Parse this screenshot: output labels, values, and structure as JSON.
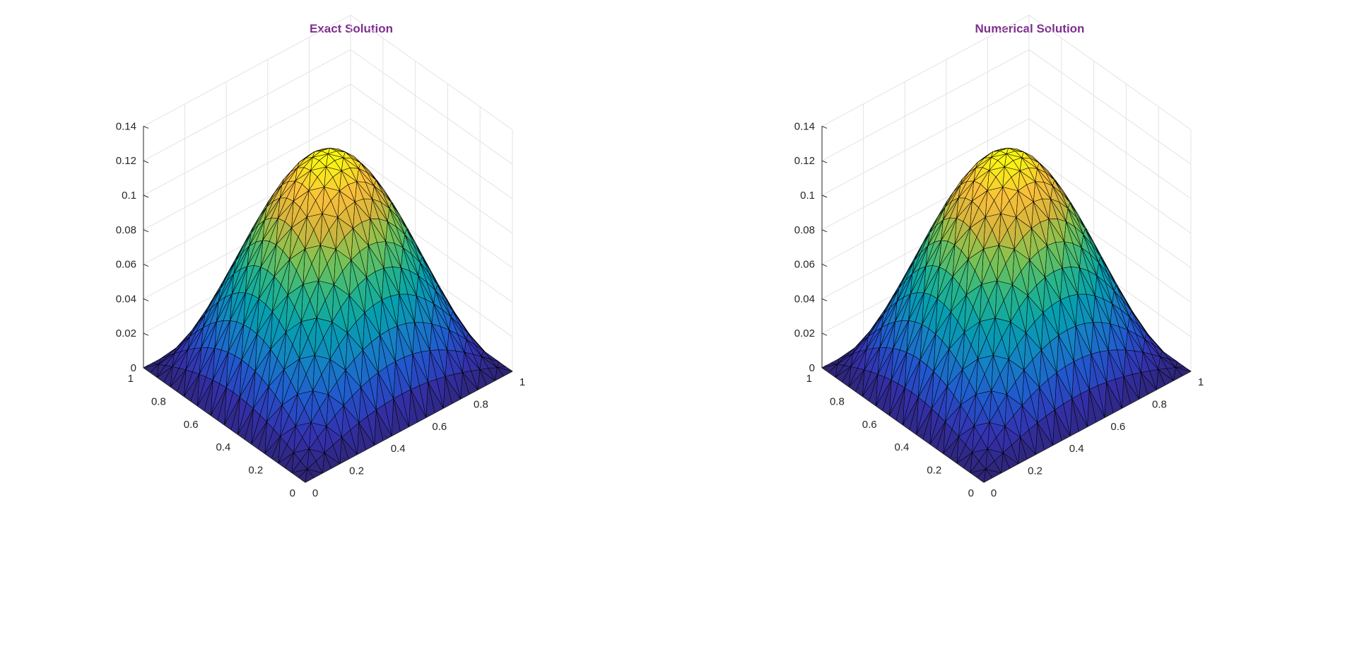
{
  "colors": {
    "title": "#7e2f8e",
    "grid": "#e3e3e3",
    "axis": "#262626",
    "mesh_edge": "#000000",
    "colormap": "parula"
  },
  "chart_data": [
    {
      "type": "surface",
      "title": "Exact Solution",
      "xlabel": "",
      "ylabel": "",
      "zlabel": "",
      "xlim": [
        0,
        1
      ],
      "ylim": [
        0,
        1
      ],
      "zlim": [
        0,
        0.14
      ],
      "x_ticks": [
        "0",
        "0.2",
        "0.4",
        "0.6",
        "0.8",
        "1"
      ],
      "y_ticks": [
        "0",
        "0.2",
        "0.4",
        "0.6",
        "0.8",
        "1"
      ],
      "z_ticks": [
        "0",
        "0.02",
        "0.04",
        "0.06",
        "0.08",
        "0.1",
        "0.12",
        "0.14"
      ],
      "grid": true,
      "mesh": "triangular",
      "mesh_divisions": 24,
      "peak": {
        "x": 0.5,
        "y": 0.5,
        "z": 0.125
      },
      "boundary_value": 0
    },
    {
      "type": "surface",
      "title": "Numerical Solution",
      "xlabel": "",
      "ylabel": "",
      "zlabel": "",
      "xlim": [
        0,
        1
      ],
      "ylim": [
        0,
        1
      ],
      "zlim": [
        0,
        0.14
      ],
      "x_ticks": [
        "0",
        "0.2",
        "0.4",
        "0.6",
        "0.8",
        "1"
      ],
      "y_ticks": [
        "0",
        "0.2",
        "0.4",
        "0.6",
        "0.8",
        "1"
      ],
      "z_ticks": [
        "0",
        "0.02",
        "0.04",
        "0.06",
        "0.08",
        "0.1",
        "0.12",
        "0.14"
      ],
      "grid": true,
      "mesh": "triangular",
      "mesh_divisions": 24,
      "peak": {
        "x": 0.5,
        "y": 0.5,
        "z": 0.125
      },
      "boundary_value": 0
    }
  ]
}
